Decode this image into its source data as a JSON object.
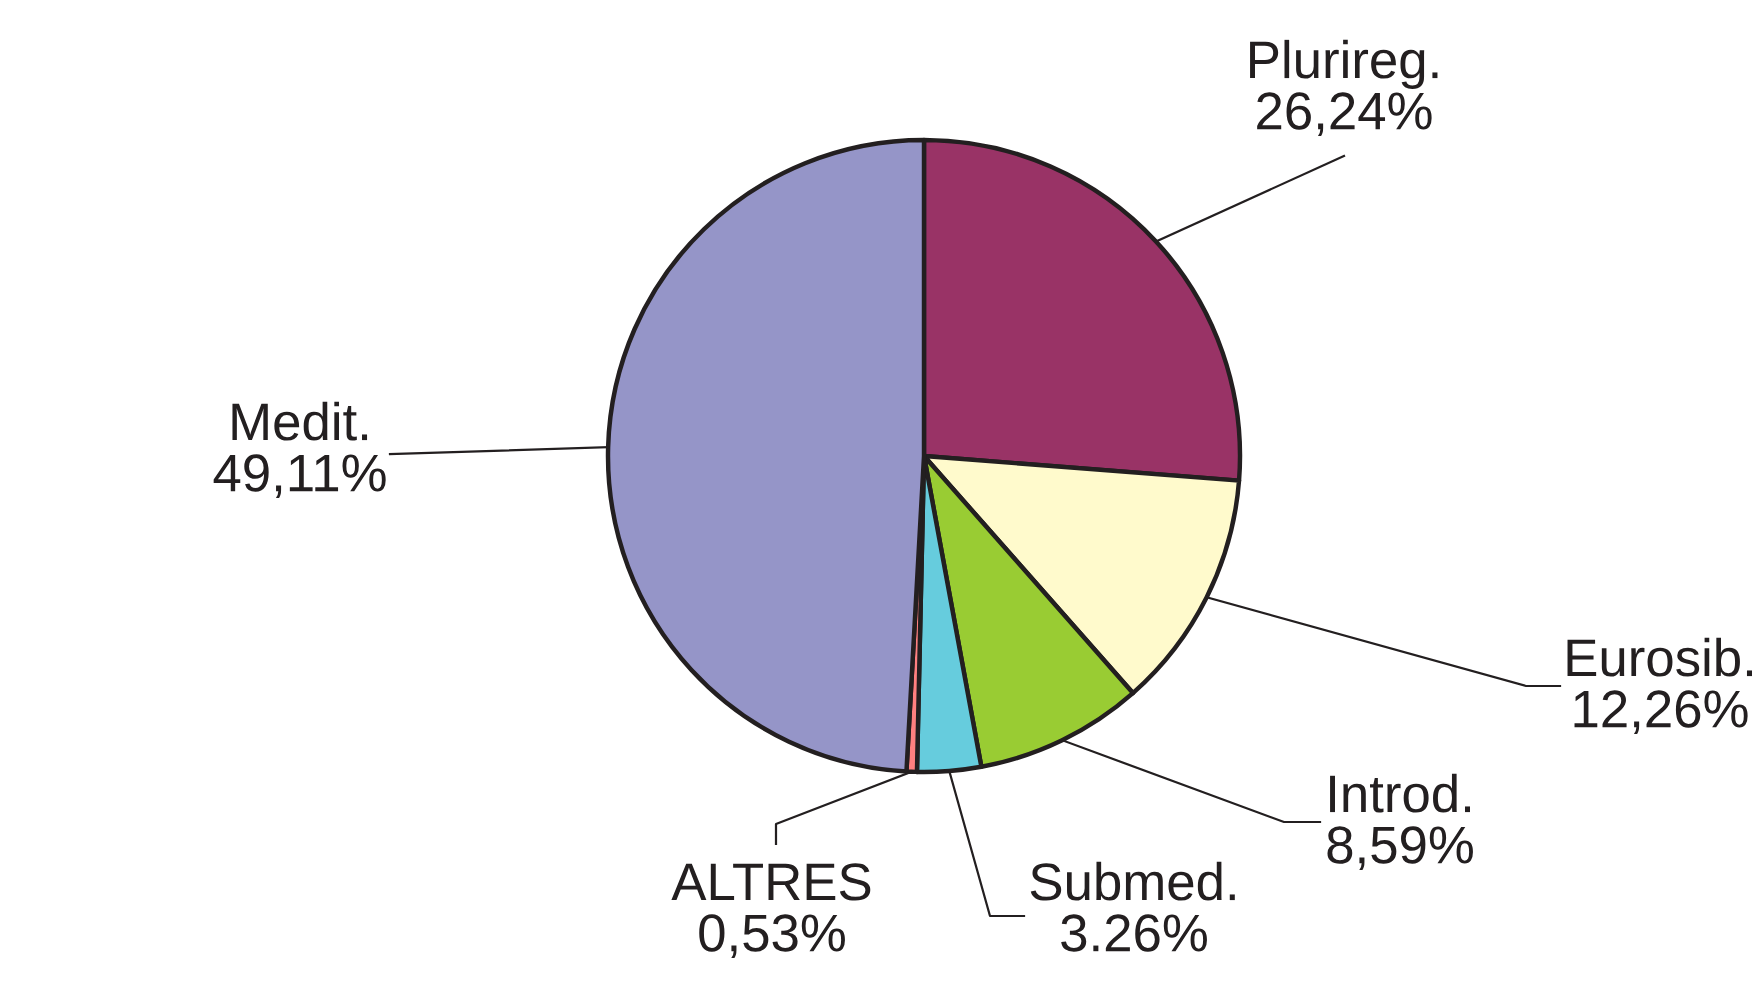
{
  "chart_data": {
    "type": "pie",
    "categories": [
      "Plurireg.",
      "Eurosib.",
      "Introd.",
      "Submed.",
      "ALTRES",
      "Medit."
    ],
    "values": [
      26.24,
      12.26,
      8.59,
      3.26,
      0.53,
      49.11
    ],
    "colors": [
      "#993366",
      "#fffacc",
      "#99cc33",
      "#66ccdd",
      "#ff8080",
      "#9595c8"
    ],
    "value_labels": [
      "26,24%",
      "12,26%",
      "8,59%",
      "3.26%",
      "0,53%",
      "49,11%"
    ]
  }
}
